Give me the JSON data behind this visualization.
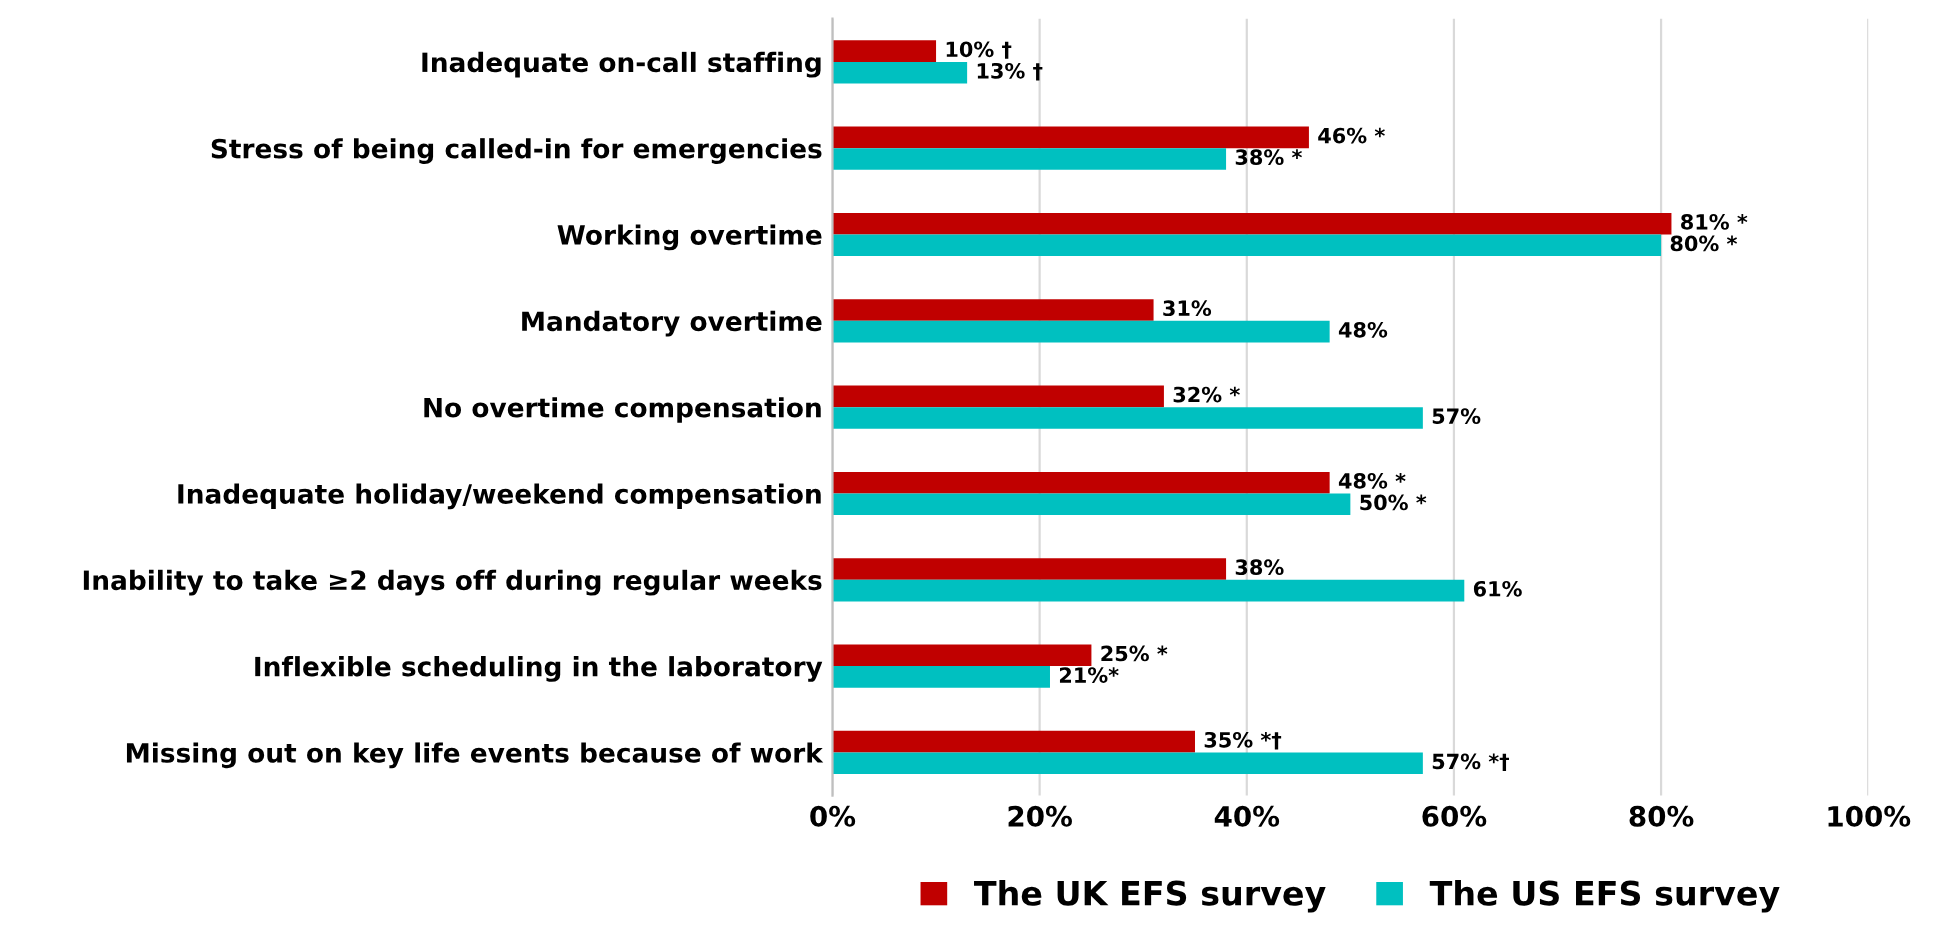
{
  "chart_data": {
    "type": "bar",
    "orientation": "horizontal",
    "categories": [
      "Inadequate on-call staffing",
      "Stress of being called-in for emergencies",
      "Working overtime",
      "Mandatory overtime",
      "No overtime compensation",
      "Inadequate holiday/weekend compensation",
      "Inability to take ≥2 days off during regular weeks",
      "Inflexible scheduling in the laboratory",
      "Missing out on key life events because of work"
    ],
    "series": [
      {
        "name": "The UK EFS survey",
        "color": "#c00000",
        "values": [
          10,
          46,
          81,
          31,
          32,
          48,
          38,
          25,
          35
        ],
        "value_labels": [
          "10% †",
          "46% *",
          "81% *",
          "31%",
          "32% *",
          "48% *",
          "38%",
          "25% *",
          "35% *†"
        ]
      },
      {
        "name": "The US EFS survey",
        "color": "#00c0c0",
        "values": [
          13,
          38,
          80,
          48,
          57,
          50,
          61,
          21,
          57
        ],
        "value_labels": [
          "13% †",
          "38% *",
          "80% *",
          "48%",
          "57%",
          "50% *",
          "61%",
          "21%*",
          "57% *†"
        ]
      }
    ],
    "xlim": [
      0,
      100
    ],
    "xticks": [
      {
        "value": 0,
        "label": "0%"
      },
      {
        "value": 20,
        "label": "20%"
      },
      {
        "value": 40,
        "label": "40%"
      },
      {
        "value": 60,
        "label": "60%"
      },
      {
        "value": 80,
        "label": "80%"
      },
      {
        "value": 100,
        "label": "100%"
      }
    ],
    "grid": "x",
    "legend": "bottom"
  }
}
